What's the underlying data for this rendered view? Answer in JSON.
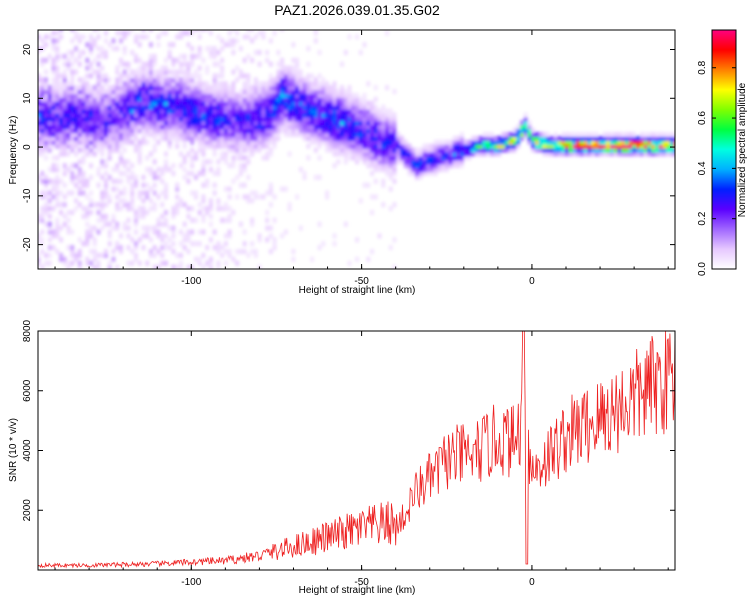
{
  "title": "PAZ1.2026.039.01.35.G02",
  "chart_data": [
    {
      "type": "heatmap",
      "name": "spectrogram",
      "xlabel": "Height of straight line (km)",
      "ylabel": "Frequency (Hz)",
      "xlim": [
        -145,
        42
      ],
      "ylim": [
        -25,
        24
      ],
      "xticks": [
        "-100",
        "-50",
        "0"
      ],
      "xtick_values": [
        -100,
        -50,
        0
      ],
      "yticks": [
        "-20",
        "-10",
        "0",
        "10",
        "20"
      ],
      "ytick_values": [
        -20,
        -10,
        0,
        10,
        20
      ],
      "colorbar": {
        "label": "Normalized spectral amplitude",
        "range": [
          0.0,
          0.95
        ],
        "ticks": [
          "0.0",
          "0.2",
          "0.4",
          "0.6",
          "0.8"
        ],
        "tick_values": [
          0.0,
          0.2,
          0.4,
          0.6,
          0.8
        ],
        "colors": [
          "#ffffff",
          "#e6c8ff",
          "#a066ff",
          "#5a00ff",
          "#0020ff",
          "#00b0ff",
          "#00ffe0",
          "#00ff40",
          "#80ff00",
          "#ffff00",
          "#ff8000",
          "#ff0000",
          "#ff0080"
        ]
      },
      "ridge": {
        "x": [
          -145,
          -135,
          -125,
          -115,
          -105,
          -95,
          -85,
          -78,
          -73,
          -65,
          -57,
          -50,
          -45,
          -40,
          -37,
          -34,
          -30,
          -25,
          -20,
          -15,
          -10,
          -5,
          -2,
          0,
          5,
          10,
          20,
          30,
          42
        ],
        "f": [
          6,
          6,
          5,
          9,
          8,
          6,
          5,
          6,
          10,
          7,
          5,
          3,
          1,
          0,
          -2,
          -4,
          -3,
          -2,
          -1,
          0,
          0,
          1,
          4,
          1,
          0,
          0,
          0,
          0,
          0
        ],
        "amplitude": [
          0.25,
          0.25,
          0.2,
          0.3,
          0.3,
          0.3,
          0.25,
          0.3,
          0.35,
          0.3,
          0.35,
          0.3,
          0.3,
          0.25,
          0.3,
          0.3,
          0.3,
          0.3,
          0.4,
          0.55,
          0.65,
          0.7,
          0.75,
          0.7,
          0.8,
          0.85,
          0.9,
          0.95,
          0.9
        ]
      }
    },
    {
      "type": "line",
      "name": "snr",
      "xlabel": "Height of straight line (km)",
      "ylabel": "SNR (10 * v/v)",
      "xlim": [
        -145,
        42
      ],
      "ylim": [
        0,
        8000
      ],
      "xticks": [
        "-100",
        "-50",
        "0"
      ],
      "xtick_values": [
        -100,
        -50,
        0
      ],
      "yticks": [
        "2000",
        "4000",
        "6000",
        "8000"
      ],
      "ytick_values": [
        2000,
        4000,
        6000,
        8000
      ],
      "color": "#ee2020",
      "envelope": {
        "x": [
          -145,
          -130,
          -110,
          -90,
          -80,
          -70,
          -60,
          -50,
          -45,
          -40,
          -37,
          -35,
          -32,
          -30,
          -27,
          -25,
          -20,
          -15,
          -10,
          -5,
          -3,
          -2,
          -1,
          0,
          3,
          6,
          10,
          20,
          30,
          35,
          42
        ],
        "y": [
          150,
          150,
          200,
          300,
          450,
          800,
          1100,
          1400,
          1500,
          1600,
          1900,
          2600,
          3000,
          3200,
          3500,
          3900,
          4000,
          4200,
          4600,
          4500,
          5200,
          7200,
          4300,
          3400,
          3800,
          4100,
          4700,
          5300,
          6000,
          6400,
          6900
        ]
      },
      "spikes": [
        {
          "x": -2.5,
          "y": 8000
        },
        {
          "x": -27,
          "y": 4100
        },
        {
          "x": -17,
          "y": 4200
        },
        {
          "x": -1.5,
          "y": 200
        }
      ]
    }
  ]
}
